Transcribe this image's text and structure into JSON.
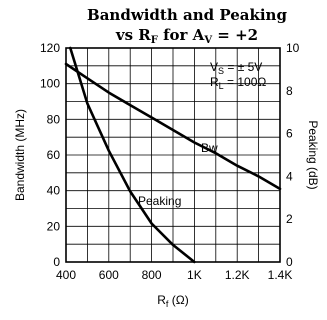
{
  "chart_data": {
    "type": "line",
    "title_line1": "Bandwidth and Peaking",
    "title_line2": {
      "prefix": "vs R",
      "prefix_sub": "F",
      "middle": " for A",
      "middle_sub": "V",
      "suffix": " = +2"
    },
    "xlabel": {
      "main": "R",
      "sub": "f",
      "unit": " (Ω)"
    },
    "ylabel_left": "Bandwidth (MHz)",
    "ylabel_right": "Peaking (dB)",
    "xlim": [
      400,
      1400
    ],
    "ylim_left": [
      0,
      120
    ],
    "ylim_right": [
      0,
      10
    ],
    "grid": true,
    "x_ticks": [
      {
        "value": 400,
        "label": "400"
      },
      {
        "value": 600,
        "label": "600"
      },
      {
        "value": 800,
        "label": "800"
      },
      {
        "value": 1000,
        "label": "1K"
      },
      {
        "value": 1200,
        "label": "1.2K"
      },
      {
        "value": 1400,
        "label": "1.4K"
      }
    ],
    "y_left_ticks": [
      {
        "value": 0,
        "label": "0"
      },
      {
        "value": 20,
        "label": "20"
      },
      {
        "value": 40,
        "label": "40"
      },
      {
        "value": 60,
        "label": "60"
      },
      {
        "value": 80,
        "label": "80"
      },
      {
        "value": 100,
        "label": "100"
      },
      {
        "value": 120,
        "label": "120"
      }
    ],
    "y_right_ticks": [
      {
        "value": 0,
        "label": "0"
      },
      {
        "value": 2,
        "label": "2"
      },
      {
        "value": 4,
        "label": "4"
      },
      {
        "value": 6,
        "label": "6"
      },
      {
        "value": 8,
        "label": "8"
      },
      {
        "value": 10,
        "label": "10"
      }
    ],
    "conditions": [
      {
        "main": "V",
        "sub": "S",
        "rest": " = ± 5V"
      },
      {
        "main": "R",
        "sub": "L",
        "rest": " = 100Ω"
      }
    ],
    "series": [
      {
        "name": "Bw",
        "axis": "left",
        "x": [
          400,
          500,
          600,
          700,
          800,
          900,
          1000,
          1100,
          1200,
          1300,
          1400
        ],
        "y": [
          111,
          103,
          95,
          88,
          81,
          74,
          67,
          61,
          54,
          48,
          41
        ]
      },
      {
        "name": "Peaking",
        "axis": "right",
        "x": [
          420,
          500,
          600,
          700,
          800,
          900,
          1000
        ],
        "y": [
          10,
          7.4,
          5.2,
          3.3,
          1.8,
          0.8,
          0
        ]
      }
    ],
    "colors": {
      "line": "#000000",
      "grid": "#000000",
      "background": "#ffffff"
    }
  }
}
